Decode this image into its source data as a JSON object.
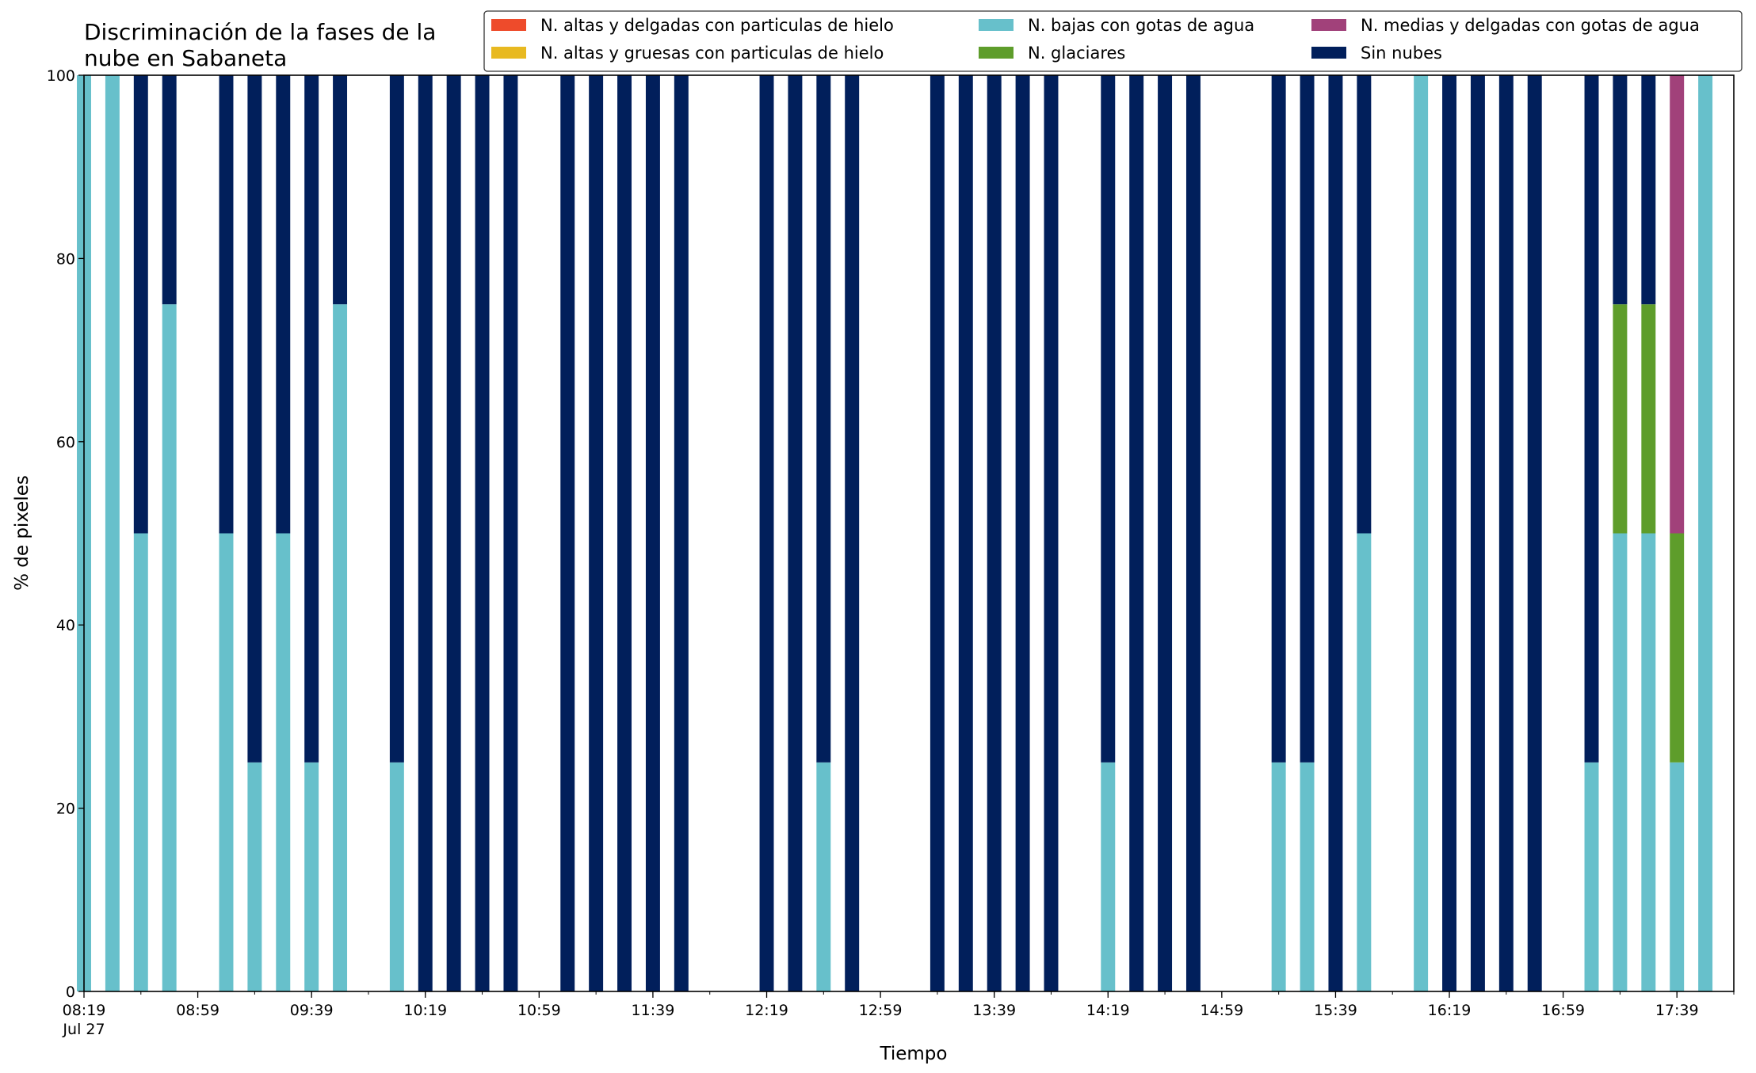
{
  "chart_data": {
    "type": "bar",
    "stacked": true,
    "title_lines": [
      "Discriminación de la fases de la",
      "nube en Sabaneta"
    ],
    "xlabel": "Tiempo",
    "ylabel": "% de pixeles",
    "ylim": [
      0,
      100
    ],
    "yticks": [
      0,
      20,
      40,
      60,
      80,
      100
    ],
    "grid": false,
    "legend_position": "top-right",
    "x_start": "08:19",
    "x_end": "17:59",
    "x_step_minutes": 10,
    "x_tick_labels": [
      {
        "time": "08:19",
        "label": "08:19",
        "sublabel": "Jul 27"
      },
      {
        "time": "08:59",
        "label": "08:59"
      },
      {
        "time": "09:39",
        "label": "09:39"
      },
      {
        "time": "10:19",
        "label": "10:19"
      },
      {
        "time": "10:59",
        "label": "10:59"
      },
      {
        "time": "11:39",
        "label": "11:39"
      },
      {
        "time": "12:19",
        "label": "12:19"
      },
      {
        "time": "12:59",
        "label": "12:59"
      },
      {
        "time": "13:39",
        "label": "13:39"
      },
      {
        "time": "14:19",
        "label": "14:19"
      },
      {
        "time": "14:59",
        "label": "14:59"
      },
      {
        "time": "15:39",
        "label": "15:39"
      },
      {
        "time": "16:19",
        "label": "16:19"
      },
      {
        "time": "16:59",
        "label": "16:59"
      },
      {
        "time": "17:39",
        "label": "17:39"
      }
    ],
    "x": [
      "08:19",
      "08:29",
      "08:39",
      "08:49",
      "08:59",
      "09:09",
      "09:19",
      "09:29",
      "09:39",
      "09:49",
      "09:59",
      "10:09",
      "10:19",
      "10:29",
      "10:39",
      "10:49",
      "10:59",
      "11:09",
      "11:19",
      "11:29",
      "11:39",
      "11:49",
      "11:59",
      "12:09",
      "12:19",
      "12:29",
      "12:39",
      "12:49",
      "12:59",
      "13:09",
      "13:19",
      "13:29",
      "13:39",
      "13:49",
      "13:59",
      "14:09",
      "14:19",
      "14:29",
      "14:39",
      "14:49",
      "14:59",
      "15:09",
      "15:19",
      "15:29",
      "15:39",
      "15:49",
      "15:59",
      "16:09",
      "16:19",
      "16:29",
      "16:39",
      "16:49",
      "16:59",
      "17:09",
      "17:19",
      "17:29",
      "17:39",
      "17:49"
    ],
    "series": [
      {
        "name": "N. altas y delgadas con particulas de hielo",
        "color": "#ee4b2b",
        "values": [
          0,
          0,
          0,
          0,
          0,
          0,
          0,
          0,
          0,
          0,
          0,
          0,
          0,
          0,
          0,
          0,
          0,
          0,
          0,
          0,
          0,
          0,
          0,
          0,
          0,
          0,
          0,
          0,
          0,
          0,
          0,
          0,
          0,
          0,
          0,
          0,
          0,
          0,
          0,
          0,
          0,
          0,
          0,
          0,
          0,
          0,
          0,
          0,
          0,
          0,
          0,
          0,
          0,
          0,
          0,
          0,
          0,
          0
        ]
      },
      {
        "name": "N. altas y gruesas con particulas de hielo",
        "color": "#e8b920",
        "values": [
          0,
          0,
          0,
          0,
          0,
          0,
          0,
          0,
          0,
          0,
          0,
          0,
          0,
          0,
          0,
          0,
          0,
          0,
          0,
          0,
          0,
          0,
          0,
          0,
          0,
          0,
          0,
          0,
          0,
          0,
          0,
          0,
          0,
          0,
          0,
          0,
          0,
          0,
          0,
          0,
          0,
          0,
          0,
          0,
          0,
          0,
          0,
          0,
          0,
          0,
          0,
          0,
          0,
          0,
          0,
          0,
          0,
          0
        ]
      },
      {
        "name": "N. bajas con gotas de agua",
        "color": "#67c0cb",
        "values": [
          100,
          100,
          50,
          75,
          0,
          50,
          25,
          50,
          25,
          75,
          0,
          25,
          0,
          0,
          0,
          0,
          0,
          0,
          0,
          0,
          0,
          0,
          0,
          0,
          0,
          0,
          25,
          0,
          0,
          0,
          0,
          0,
          0,
          0,
          0,
          0,
          25,
          0,
          0,
          0,
          0,
          0,
          25,
          25,
          0,
          50,
          0,
          100,
          0,
          0,
          0,
          0,
          0,
          25,
          50,
          50,
          25,
          100
        ]
      },
      {
        "name": "N. glaciares",
        "color": "#5e9d2b",
        "values": [
          0,
          0,
          0,
          0,
          0,
          0,
          0,
          0,
          0,
          0,
          0,
          0,
          0,
          0,
          0,
          0,
          0,
          0,
          0,
          0,
          0,
          0,
          0,
          0,
          0,
          0,
          0,
          0,
          0,
          0,
          0,
          0,
          0,
          0,
          0,
          0,
          0,
          0,
          0,
          0,
          0,
          0,
          0,
          0,
          0,
          0,
          0,
          0,
          0,
          0,
          0,
          0,
          0,
          0,
          25,
          25,
          25,
          0
        ]
      },
      {
        "name": "N. medias y delgadas con gotas de agua",
        "color": "#a1417a",
        "values": [
          0,
          0,
          0,
          0,
          0,
          0,
          0,
          0,
          0,
          0,
          0,
          0,
          0,
          0,
          0,
          0,
          0,
          0,
          0,
          0,
          0,
          0,
          0,
          0,
          0,
          0,
          0,
          0,
          0,
          0,
          0,
          0,
          0,
          0,
          0,
          0,
          0,
          0,
          0,
          0,
          0,
          0,
          0,
          0,
          0,
          0,
          0,
          0,
          0,
          0,
          0,
          0,
          0,
          0,
          0,
          0,
          50,
          0
        ]
      },
      {
        "name": "Sin nubes",
        "color": "#011f5b",
        "values": [
          0,
          0,
          50,
          25,
          0,
          50,
          75,
          50,
          75,
          25,
          0,
          75,
          100,
          100,
          100,
          100,
          0,
          100,
          100,
          100,
          100,
          100,
          0,
          0,
          100,
          100,
          75,
          100,
          0,
          0,
          100,
          100,
          100,
          100,
          100,
          0,
          75,
          100,
          100,
          100,
          0,
          0,
          75,
          75,
          100,
          50,
          0,
          0,
          100,
          100,
          100,
          100,
          0,
          75,
          25,
          25,
          0,
          0
        ]
      }
    ]
  }
}
